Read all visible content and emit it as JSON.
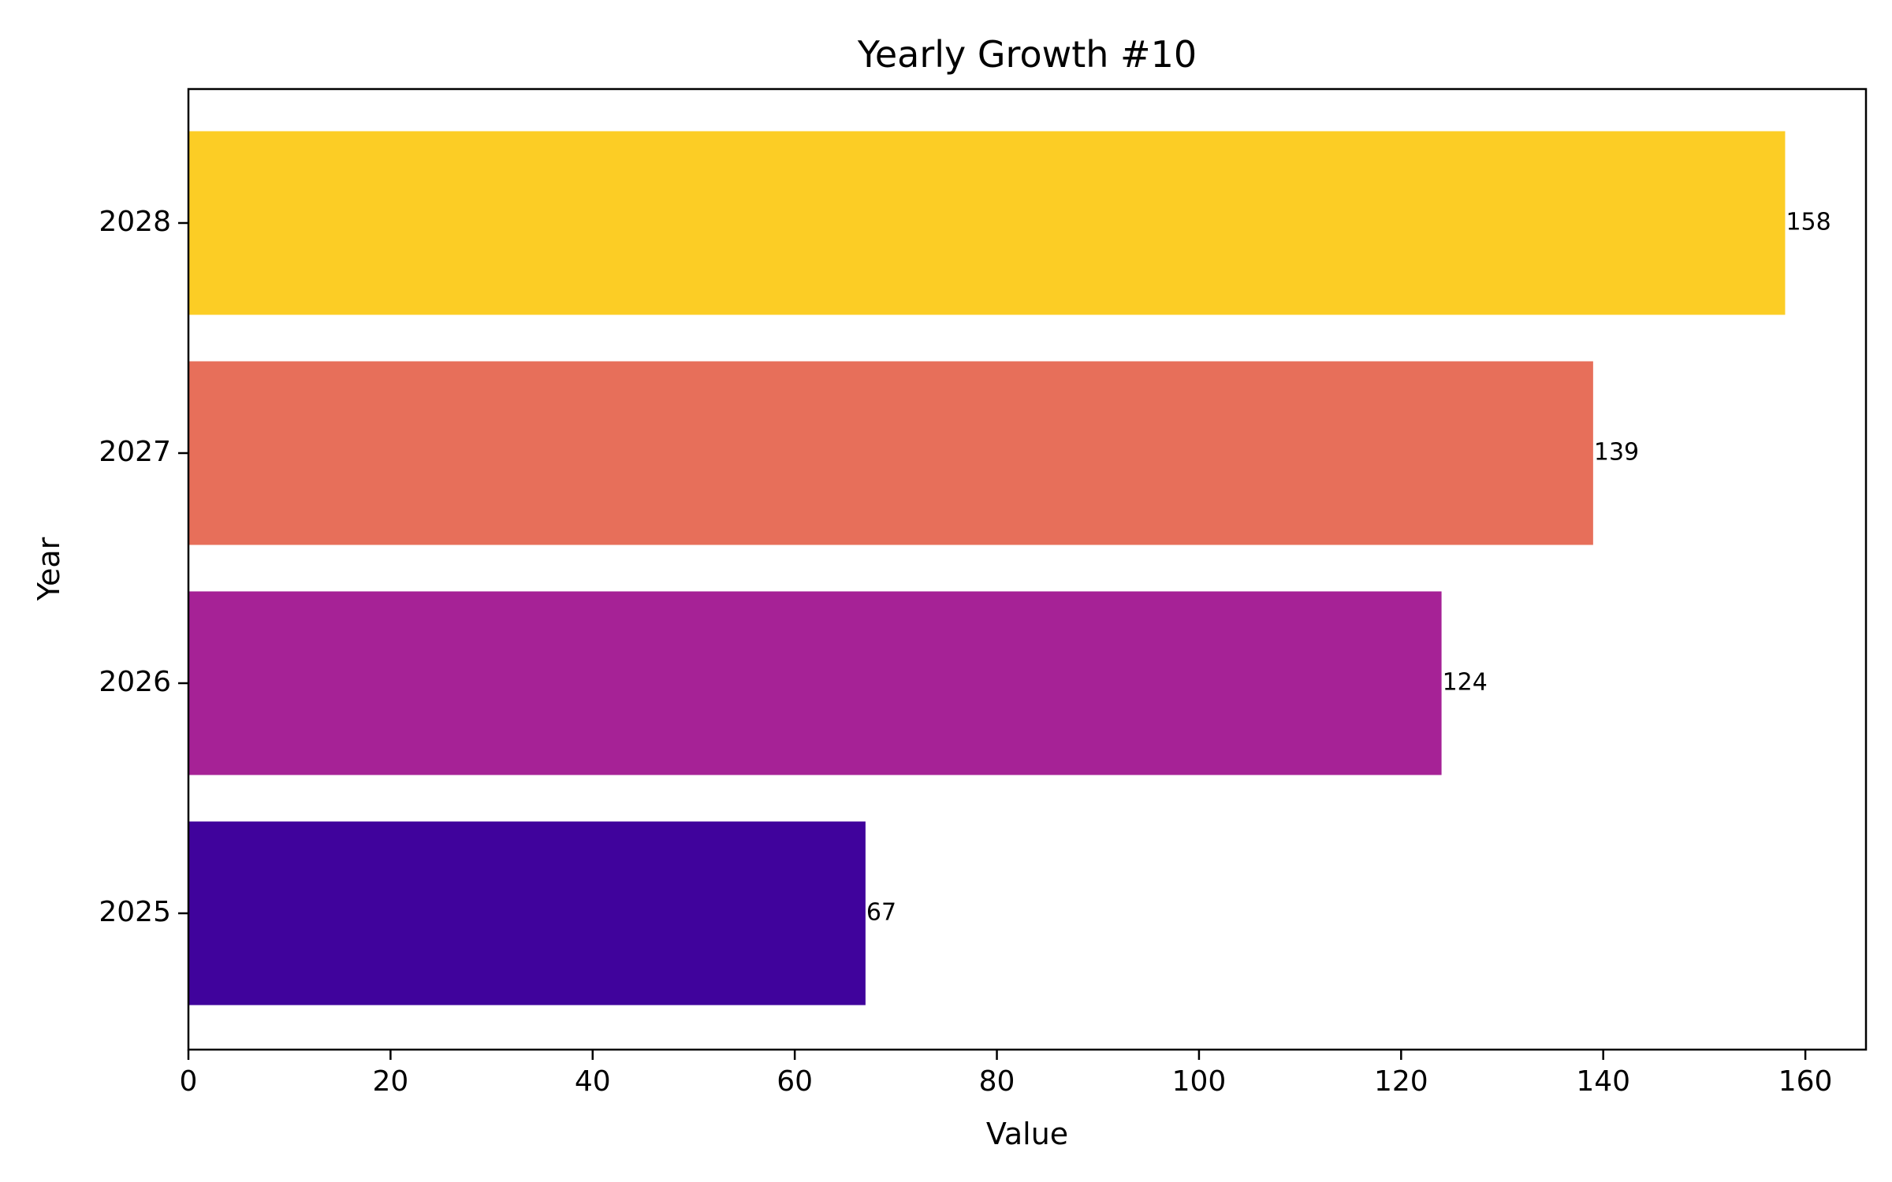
{
  "chart_data": {
    "type": "bar",
    "orientation": "horizontal",
    "title": "Yearly Growth #10",
    "xlabel": "Value",
    "ylabel": "Year",
    "categories": [
      "2025",
      "2026",
      "2027",
      "2028"
    ],
    "values": [
      67,
      124,
      139,
      158
    ],
    "value_labels": [
      "67",
      "124",
      "139",
      "158"
    ],
    "colors": [
      "#40039c",
      "#a62296",
      "#e76f5a",
      "#fccd25"
    ],
    "xlim": [
      0,
      166
    ],
    "xticks": [
      0,
      20,
      40,
      60,
      80,
      100,
      120,
      140,
      160
    ],
    "xtick_labels": [
      "0",
      "20",
      "40",
      "60",
      "80",
      "100",
      "120",
      "140",
      "160"
    ],
    "grid": false,
    "legend": "none"
  }
}
